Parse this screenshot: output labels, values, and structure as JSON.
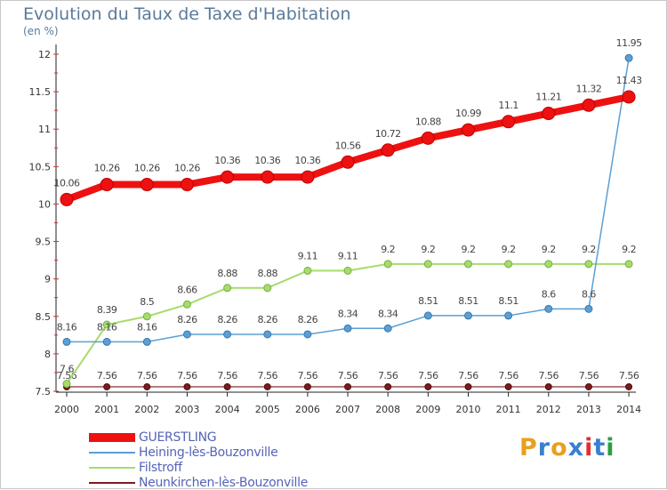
{
  "title": "Evolution du Taux de Taxe d'Habitation",
  "unit_label": "(en %)",
  "logo_text": "Proxiti",
  "logo_colors": [
    "#e8a020",
    "#3a7fd0",
    "#e8a020",
    "#3a7fd0",
    "#e03030",
    "#3a7fd0",
    "#2aa040"
  ],
  "chart_data": {
    "type": "line",
    "x": [
      "2000",
      "2001",
      "2002",
      "2003",
      "2004",
      "2005",
      "2006",
      "2007",
      "2008",
      "2009",
      "2010",
      "2011",
      "2012",
      "2013",
      "2014"
    ],
    "ylim": [
      7.5,
      12
    ],
    "yticks": [
      "7.5",
      "8",
      "8.5",
      "9",
      "9.5",
      "10",
      "10.5",
      "11",
      "11.5",
      "12"
    ],
    "grid": false,
    "legend_position": "bottom-left",
    "series": [
      {
        "name": "Neunkirchen-lès-Bouzonville",
        "color": "#7b1c1c",
        "values": [
          7.56,
          7.56,
          7.56,
          7.56,
          7.56,
          7.56,
          7.56,
          7.56,
          7.56,
          7.56,
          7.56,
          7.56,
          7.56,
          7.56,
          7.56
        ],
        "labels": [
          "7.56",
          "7.56",
          "7.56",
          "7.56",
          "7.56",
          "7.56",
          "7.56",
          "7.56",
          "7.56",
          "7.56",
          "7.56",
          "7.56",
          "7.56",
          "7.56",
          "7.56"
        ]
      },
      {
        "name": "Filstroff",
        "color": "#a6dc6b",
        "values": [
          7.6,
          8.39,
          8.5,
          8.66,
          8.88,
          8.88,
          9.11,
          9.11,
          9.2,
          9.2,
          9.2,
          9.2,
          9.2,
          9.2,
          9.2
        ],
        "labels": [
          "7.6",
          "8.39",
          "8.5",
          "8.66",
          "8.88",
          "8.88",
          "9.11",
          "9.11",
          "9.2",
          "9.2",
          "9.2",
          "9.2",
          "9.2",
          "9.2",
          "9.2"
        ]
      },
      {
        "name": "Heining-lès-Bouzonville",
        "color": "#5b9fd3",
        "values": [
          8.16,
          8.16,
          8.16,
          8.26,
          8.26,
          8.26,
          8.26,
          8.34,
          8.34,
          8.51,
          8.51,
          8.51,
          8.6,
          8.6,
          11.95
        ],
        "labels": [
          "8.16",
          "8.16",
          "8.16",
          "8.26",
          "8.26",
          "8.26",
          "8.26",
          "8.34",
          "8.34",
          "8.51",
          "8.51",
          "8.51",
          "8.6",
          "8.6",
          "11.95"
        ]
      },
      {
        "name": "GUERSTLING",
        "color": "#ee1111",
        "values": [
          10.06,
          10.26,
          10.26,
          10.26,
          10.36,
          10.36,
          10.36,
          10.56,
          10.72,
          10.88,
          10.99,
          11.1,
          11.21,
          11.32,
          11.43
        ],
        "labels": [
          "10.06",
          "10.26",
          "10.26",
          "10.26",
          "10.36",
          "10.36",
          "10.36",
          "10.56",
          "10.72",
          "10.88",
          "10.99",
          "11.1",
          "11.21",
          "11.32",
          "11.43"
        ]
      }
    ]
  },
  "legend": [
    {
      "name": "GUERSTLING",
      "color": "#ee1111"
    },
    {
      "name": "Heining-lès-Bouzonville",
      "color": "#5b9fd3"
    },
    {
      "name": "Filstroff",
      "color": "#a6dc6b"
    },
    {
      "name": "Neunkirchen-lès-Bouzonville",
      "color": "#7b1c1c"
    }
  ]
}
